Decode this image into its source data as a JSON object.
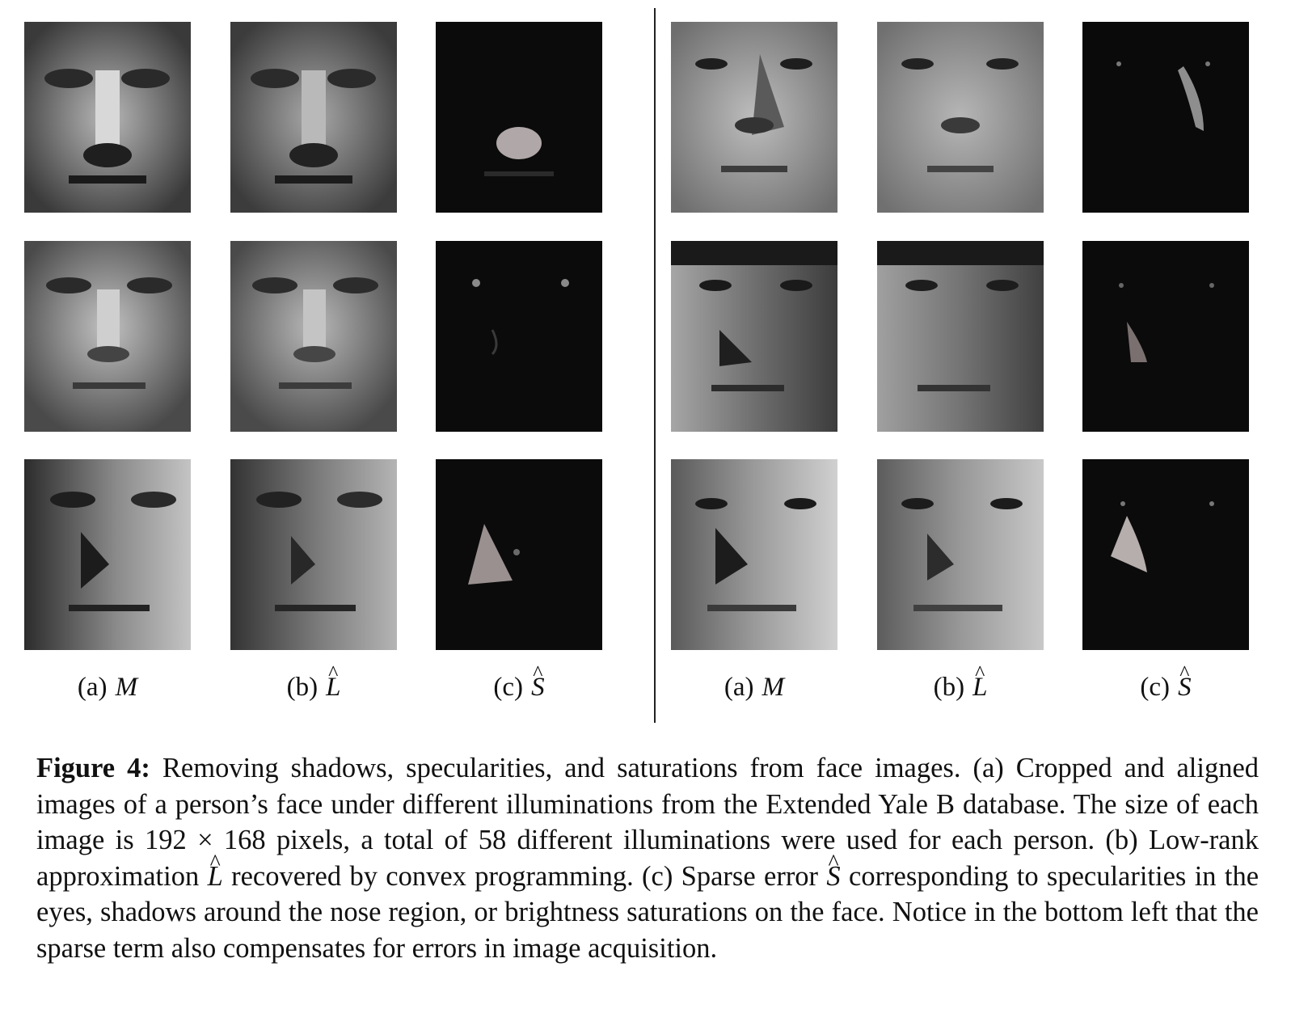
{
  "panels": {
    "left": {
      "labels": [
        {
          "prefix": "(a)",
          "symbol": "M",
          "hat": ""
        },
        {
          "prefix": "(b)",
          "symbol": "L",
          "hat": "^"
        },
        {
          "prefix": "(c)",
          "symbol": "S",
          "hat": "^"
        }
      ]
    },
    "right": {
      "labels": [
        {
          "prefix": "(a)",
          "symbol": "M",
          "hat": ""
        },
        {
          "prefix": "(b)",
          "symbol": "L",
          "hat": "^"
        },
        {
          "prefix": "(c)",
          "symbol": "S",
          "hat": "^"
        }
      ]
    }
  },
  "caption": {
    "label": "Figure 4:",
    "text_1": "Removing shadows, specularities, and saturations from face images. (a) Cropped and aligned images of a person’s face under different illuminations from the Extended Yale B database. The size of each image is 192 × 168 pixels, a total of 58 different illuminations were used for each person. (b) Low-rank approximation",
    "sym_L": "L",
    "text_2": "recovered by convex programming. (c) Sparse error",
    "sym_S": "S",
    "text_3": "corresponding to specularities in the eyes, shadows around the nose region, or brightness saturations on the face. Notice in the bottom left that the sparse term also compensates for errors in image acquisition.",
    "hat": "^"
  }
}
